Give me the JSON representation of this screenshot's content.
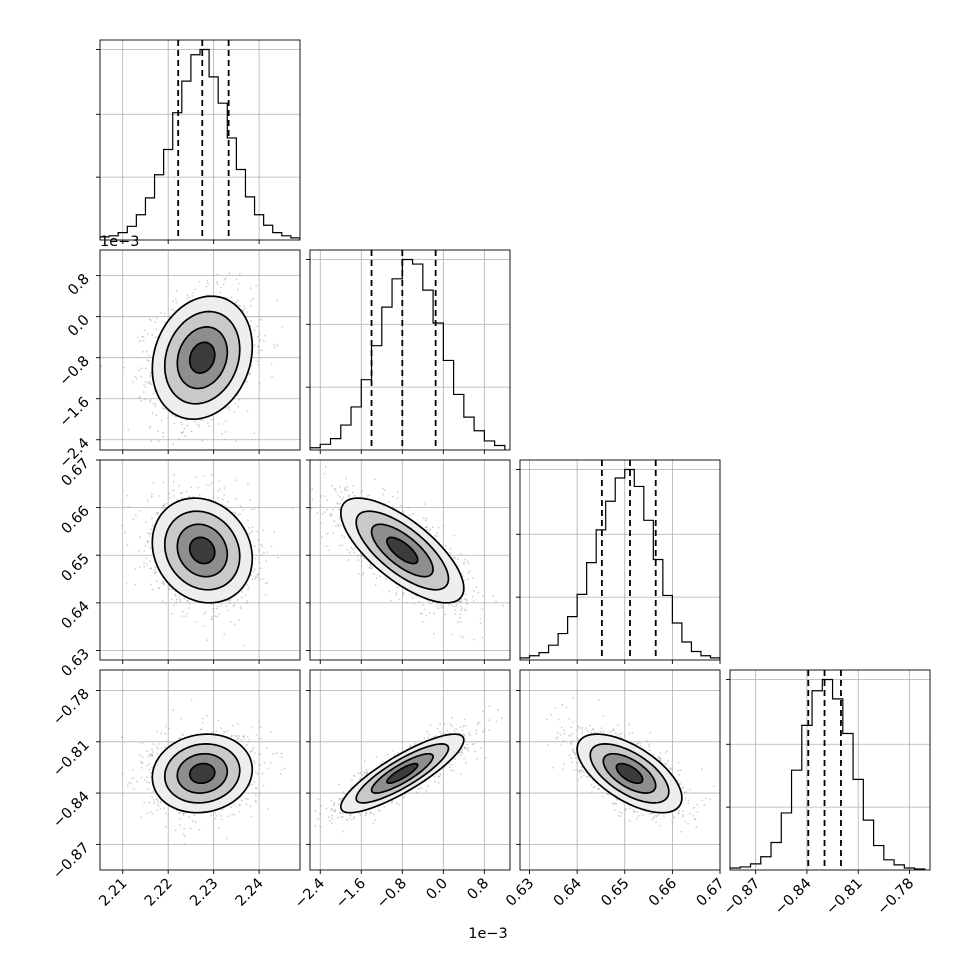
{
  "chart_data": {
    "type": "corner",
    "multiplier_labels": {
      "column_1": "1e−3",
      "row_1": "1e−3"
    },
    "parameters": [
      {
        "id": "p0",
        "range": [
          2.205,
          2.249
        ],
        "ticks": [
          2.21,
          2.22,
          2.23,
          2.24
        ],
        "tick_labels": [
          "2.21",
          "2.22",
          "2.23",
          "2.24"
        ],
        "mean": 2.2275,
        "sd": 0.0055,
        "quantiles": [
          2.2222,
          2.2275,
          2.2333
        ]
      },
      {
        "id": "p1",
        "range": [
          -2.6,
          1.3
        ],
        "ticks": [
          -2.4,
          -1.6,
          -0.8,
          0.0,
          0.8
        ],
        "tick_labels": [
          "−2.4",
          "−1.6",
          "−0.8",
          "0.0",
          "0.8"
        ],
        "mean": -0.8,
        "sd": 0.6,
        "quantiles": [
          -1.4,
          -0.8,
          -0.15
        ]
      },
      {
        "id": "p2",
        "range": [
          0.628,
          0.67
        ],
        "ticks": [
          0.63,
          0.64,
          0.65,
          0.66,
          0.67
        ],
        "tick_labels": [
          "0.63",
          "0.64",
          "0.65",
          "0.66",
          "0.67"
        ],
        "mean": 0.651,
        "sd": 0.0055,
        "quantiles": [
          0.6452,
          0.6511,
          0.6565
        ]
      },
      {
        "id": "p3",
        "range": [
          -0.885,
          -0.768
        ],
        "ticks": [
          -0.87,
          -0.84,
          -0.81,
          -0.78
        ],
        "tick_labels": [
          "−0.87",
          "−0.84",
          "−0.81",
          "−0.78"
        ],
        "mean": -0.8285,
        "sd": 0.0115,
        "quantiles": [
          -0.8392,
          -0.8297,
          -0.8201
        ]
      }
    ],
    "diagonal_histograms": [
      {
        "parameter": "p0",
        "bin_edges": [
          2.205,
          2.207,
          2.209,
          2.211,
          2.213,
          2.215,
          2.217,
          2.219,
          2.221,
          2.223,
          2.225,
          2.227,
          2.229,
          2.231,
          2.233,
          2.235,
          2.237,
          2.239,
          2.241,
          2.243,
          2.245,
          2.247,
          2.249
        ],
        "counts": [
          3,
          4,
          7,
          13,
          24,
          40,
          62,
          86,
          121,
          151,
          176,
          181,
          155,
          130,
          97,
          67,
          41,
          24,
          14,
          7,
          4,
          2
        ]
      },
      {
        "parameter": "p1",
        "bin_edges": [
          -2.6,
          -2.4,
          -2.2,
          -2.0,
          -1.8,
          -1.6,
          -1.4,
          -1.2,
          -1.0,
          -0.8,
          -0.6,
          -0.4,
          -0.2,
          0.0,
          0.2,
          0.4,
          0.6,
          0.8,
          1.0,
          1.2
        ],
        "counts": [
          2,
          5,
          10,
          22,
          38,
          62,
          92,
          126,
          151,
          168,
          164,
          141,
          112,
          79,
          49,
          29,
          17,
          8,
          4
        ]
      },
      {
        "parameter": "p2",
        "bin_edges": [
          0.628,
          0.63,
          0.632,
          0.634,
          0.636,
          0.638,
          0.64,
          0.642,
          0.644,
          0.646,
          0.648,
          0.65,
          0.652,
          0.654,
          0.656,
          0.658,
          0.66,
          0.662,
          0.664,
          0.666,
          0.668,
          0.67
        ],
        "counts": [
          2,
          4,
          7,
          14,
          25,
          41,
          62,
          92,
          123,
          150,
          172,
          180,
          164,
          132,
          95,
          61,
          35,
          17,
          8,
          4,
          2
        ]
      },
      {
        "parameter": "p3",
        "bin_edges": [
          -0.885,
          -0.879,
          -0.873,
          -0.867,
          -0.861,
          -0.855,
          -0.849,
          -0.843,
          -0.837,
          -0.831,
          -0.825,
          -0.819,
          -0.813,
          -0.807,
          -0.801,
          -0.795,
          -0.789,
          -0.783,
          -0.777,
          -0.771
        ],
        "counts": [
          2,
          3,
          6,
          13,
          27,
          56,
          98,
          142,
          176,
          187,
          168,
          134,
          89,
          49,
          24,
          10,
          5,
          2,
          1
        ]
      }
    ],
    "pair_correlations": {
      "p1|p0": 0.18,
      "p2|p0": -0.15,
      "p2|p1": -0.72,
      "p3|p0": 0.1,
      "p3|p1": 0.85,
      "p3|p2": -0.62
    },
    "density_levels_sigma": [
      0.5,
      1.0,
      1.5,
      2.0
    ],
    "grid": true
  }
}
